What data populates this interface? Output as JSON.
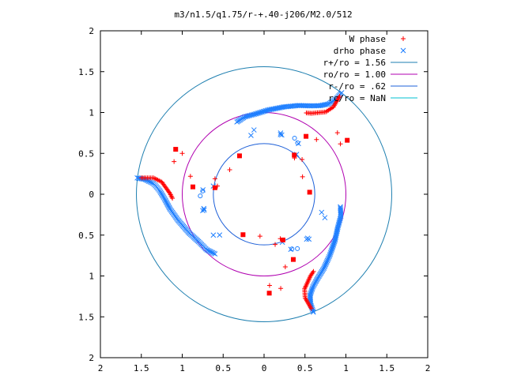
{
  "chart_data": {
    "type": "scatter",
    "title": "m3/n1.5/q1.75/r-+.40-j206/M2.0/512",
    "xlim": [
      -2,
      2
    ],
    "ylim": [
      -2,
      2
    ],
    "x_ticks": [
      -2,
      -1.5,
      -1,
      -0.5,
      0,
      0.5,
      1,
      1.5,
      2
    ],
    "y_ticks": [
      -2,
      -1.5,
      -1,
      -0.5,
      0,
      0.5,
      1,
      1.5,
      2
    ],
    "x_tick_labels": [
      "2",
      "1.5",
      "1",
      "0.5",
      "0",
      "0.5",
      "1",
      "1.5",
      "2"
    ],
    "y_tick_labels": [
      "2",
      "1.5",
      "1",
      "0.5",
      "0",
      "0.5",
      "1",
      "1.5",
      "2"
    ],
    "grid": false,
    "legend_position": "top-right",
    "colors": {
      "w_phase": "#ff0000",
      "drho_phase": "#1e7fff",
      "r_plus": "#1e7fb0",
      "ro": "#b000b0",
      "r_minus": "#1e60d8",
      "rc": "#00c0d0"
    },
    "legend": [
      {
        "label": "W phase",
        "marker": "plus"
      },
      {
        "label": "drho phase",
        "marker": "cross"
      },
      {
        "label": "r+/ro = 1.56",
        "marker": "line"
      },
      {
        "label": "ro/ro = 1.00",
        "marker": "line"
      },
      {
        "label": "r-/ro = .62",
        "marker": "line"
      },
      {
        "label": "rc/ro = NaN",
        "marker": "line"
      }
    ],
    "circles": [
      {
        "radius": 1.56
      },
      {
        "radius": 1.0
      },
      {
        "radius": 0.62
      }
    ],
    "arm_rotations_deg": [
      0,
      120,
      240
    ],
    "w_phase_arm": [
      [
        -1.5,
        0.2
      ],
      [
        -1.35,
        0.2
      ],
      [
        -1.25,
        0.15
      ],
      [
        -1.2,
        0.08
      ],
      [
        -1.15,
        0.01
      ],
      [
        -1.12,
        -0.05
      ]
    ],
    "w_phase_extra": [
      [
        -0.3,
        0.47
      ],
      [
        -0.42,
        0.3
      ],
      [
        -0.6,
        0.19
      ],
      [
        -0.6,
        0.08
      ],
      [
        -0.57,
        0.1
      ],
      [
        -0.9,
        0.22
      ],
      [
        -0.87,
        0.09
      ],
      [
        -1.1,
        0.4
      ],
      [
        -1.0,
        0.5
      ],
      [
        -1.08,
        0.55
      ]
    ],
    "drho_arm": [
      [
        -1.55,
        0.2
      ],
      [
        -1.45,
        0.18
      ],
      [
        -1.35,
        0.13
      ],
      [
        -1.28,
        0.05
      ],
      [
        -1.22,
        -0.05
      ],
      [
        -1.15,
        -0.18
      ],
      [
        -1.05,
        -0.32
      ],
      [
        -0.92,
        -0.47
      ],
      [
        -0.8,
        -0.58
      ],
      [
        -0.7,
        -0.68
      ],
      [
        -0.6,
        -0.73
      ]
    ],
    "drho_extra": [
      [
        -0.75,
        0.04
      ],
      [
        -0.78,
        -0.02
      ],
      [
        -0.62,
        0.1
      ],
      [
        -0.75,
        -0.2
      ],
      [
        -0.62,
        -0.5
      ],
      [
        -0.16,
        0.72
      ],
      [
        0.2,
        0.73
      ],
      [
        0.42,
        0.62
      ],
      [
        0.52,
        -0.55
      ]
    ]
  }
}
